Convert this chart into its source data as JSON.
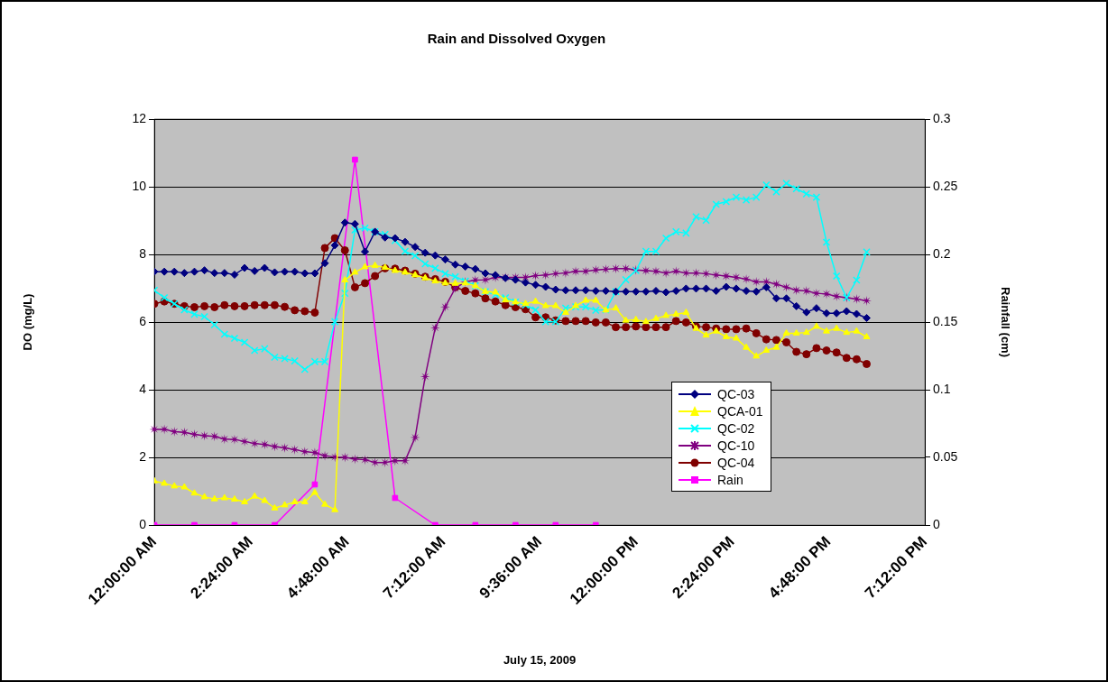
{
  "chart_data": {
    "type": "line",
    "title": "Rain and Dissolved Oxygen",
    "xlabel": "July 15, 2009",
    "ylabel": "DO (mg/L)",
    "y2label": "Rainfall (cm)",
    "x": [
      0,
      0.25,
      0.5,
      0.75,
      1,
      1.25,
      1.5,
      1.75,
      2,
      2.25,
      2.5,
      2.75,
      3,
      3.25,
      3.5,
      3.75,
      4,
      4.25,
      4.5,
      4.75,
      5,
      5.25,
      5.5,
      5.75,
      6,
      6.25,
      6.5,
      6.75,
      7,
      7.25,
      7.5,
      7.75,
      8,
      8.25,
      8.5,
      8.75,
      9,
      9.25,
      9.5,
      9.75,
      10,
      10.25,
      10.5,
      10.75,
      11,
      11.25,
      11.5,
      11.75,
      12,
      12.25,
      12.5,
      12.75,
      13,
      13.25,
      13.5,
      13.75,
      14,
      14.25,
      14.5,
      14.75,
      15,
      15.25,
      15.5,
      15.75,
      16,
      16.25,
      16.5,
      16.75,
      17,
      17.25,
      17.5,
      17.75
    ],
    "series": [
      {
        "name": "QC-03",
        "color": "#000080",
        "marker": "diamond",
        "values": [
          7.49,
          7.49,
          7.49,
          7.45,
          7.49,
          7.53,
          7.45,
          7.45,
          7.4,
          7.6,
          7.51,
          7.6,
          7.47,
          7.49,
          7.49,
          7.44,
          7.44,
          7.74,
          8.27,
          8.94,
          8.9,
          8.08,
          8.67,
          8.5,
          8.48,
          8.37,
          8.22,
          8.05,
          7.97,
          7.85,
          7.7,
          7.64,
          7.57,
          7.44,
          7.39,
          7.3,
          7.25,
          7.17,
          7.1,
          7.04,
          6.96,
          6.94,
          6.94,
          6.94,
          6.92,
          6.92,
          6.9,
          6.9,
          6.9,
          6.9,
          6.92,
          6.88,
          6.92,
          6.99,
          6.99,
          6.99,
          6.92,
          7.04,
          6.99,
          6.92,
          6.9,
          7.03,
          6.7,
          6.7,
          6.47,
          6.29,
          6.41,
          6.26,
          6.26,
          6.32,
          6.24,
          6.12
        ]
      },
      {
        "name": "QCA-01",
        "color": "#ffff00",
        "marker": "triangle",
        "values": [
          1.3,
          1.23,
          1.15,
          1.12,
          0.94,
          0.83,
          0.77,
          0.8,
          0.76,
          0.68,
          0.85,
          0.72,
          0.5,
          0.59,
          0.68,
          0.68,
          0.96,
          0.61,
          0.45,
          7.24,
          7.47,
          7.63,
          7.67,
          7.61,
          7.52,
          7.47,
          7.39,
          7.3,
          7.21,
          7.15,
          7.14,
          7.15,
          7.07,
          6.9,
          6.88,
          6.65,
          6.59,
          6.54,
          6.61,
          6.48,
          6.48,
          6.28,
          6.48,
          6.64,
          6.64,
          6.35,
          6.41,
          6.05,
          6.07,
          6.01,
          6.1,
          6.19,
          6.23,
          6.28,
          5.81,
          5.61,
          5.73,
          5.56,
          5.52,
          5.25,
          4.99,
          5.16,
          5.25,
          5.67,
          5.67,
          5.69,
          5.87,
          5.73,
          5.81,
          5.69,
          5.73,
          5.56
        ]
      },
      {
        "name": "QC-02",
        "color": "#00ffff",
        "marker": "cross",
        "values": [
          6.94,
          6.72,
          6.54,
          6.36,
          6.23,
          6.16,
          5.92,
          5.64,
          5.52,
          5.4,
          5.16,
          5.21,
          4.96,
          4.92,
          4.85,
          4.6,
          4.83,
          4.83,
          6.01,
          6.85,
          8.72,
          8.78,
          8.67,
          8.59,
          8.41,
          8.09,
          7.96,
          7.72,
          7.59,
          7.43,
          7.34,
          7.21,
          7.07,
          6.9,
          6.81,
          6.72,
          6.59,
          6.5,
          6.36,
          6.01,
          6.01,
          6.41,
          6.45,
          6.45,
          6.35,
          6.36,
          6.9,
          7.25,
          7.52,
          8.09,
          8.09,
          8.48,
          8.67,
          8.63,
          9.11,
          9.01,
          9.48,
          9.56,
          9.69,
          9.61,
          9.69,
          10.05,
          9.85,
          10.1,
          9.94,
          9.79,
          9.69,
          8.36,
          7.36,
          6.72,
          7.24,
          8.07
        ]
      },
      {
        "name": "QC-10",
        "color": "#800080",
        "marker": "star",
        "values": [
          2.83,
          2.83,
          2.76,
          2.74,
          2.68,
          2.64,
          2.62,
          2.54,
          2.53,
          2.47,
          2.41,
          2.38,
          2.32,
          2.28,
          2.23,
          2.17,
          2.14,
          2.05,
          2.01,
          2.0,
          1.95,
          1.93,
          1.85,
          1.85,
          1.9,
          1.9,
          2.59,
          4.39,
          5.83,
          6.45,
          7.0,
          7.19,
          7.24,
          7.25,
          7.32,
          7.32,
          7.32,
          7.32,
          7.37,
          7.39,
          7.43,
          7.45,
          7.5,
          7.5,
          7.54,
          7.56,
          7.58,
          7.58,
          7.54,
          7.52,
          7.5,
          7.45,
          7.5,
          7.45,
          7.45,
          7.43,
          7.39,
          7.36,
          7.32,
          7.27,
          7.19,
          7.19,
          7.12,
          7.03,
          6.94,
          6.92,
          6.85,
          6.83,
          6.76,
          6.72,
          6.68,
          6.63
        ]
      },
      {
        "name": "QC-04",
        "color": "#800000",
        "marker": "circle",
        "values": [
          6.54,
          6.61,
          6.54,
          6.47,
          6.44,
          6.47,
          6.44,
          6.5,
          6.47,
          6.47,
          6.5,
          6.5,
          6.5,
          6.45,
          6.35,
          6.32,
          6.28,
          8.19,
          8.48,
          8.12,
          7.03,
          7.15,
          7.36,
          7.59,
          7.58,
          7.52,
          7.43,
          7.34,
          7.27,
          7.19,
          7.03,
          6.92,
          6.85,
          6.7,
          6.61,
          6.5,
          6.44,
          6.38,
          6.14,
          6.14,
          6.05,
          6.03,
          6.03,
          6.03,
          5.99,
          5.99,
          5.85,
          5.85,
          5.87,
          5.85,
          5.85,
          5.85,
          6.03,
          5.99,
          5.87,
          5.85,
          5.81,
          5.79,
          5.79,
          5.81,
          5.67,
          5.49,
          5.47,
          5.4,
          5.12,
          5.05,
          5.23,
          5.16,
          5.1,
          4.94,
          4.9,
          4.76
        ]
      },
      {
        "name": "Rain",
        "color": "#ff00ff",
        "marker": "square",
        "axis": "y2",
        "x": [
          0,
          1,
          2,
          3,
          4,
          5,
          6,
          7,
          8,
          9,
          10,
          11
        ],
        "values": [
          0,
          0,
          0,
          0,
          0.03,
          0.27,
          0.02,
          0,
          0,
          0,
          0,
          0
        ]
      }
    ],
    "xlim": [
      0,
      19.2
    ],
    "xticks": [
      {
        "value": 0,
        "label": "12:00:00 AM"
      },
      {
        "value": 2.4,
        "label": "2:24:00 AM"
      },
      {
        "value": 4.8,
        "label": "4:48:00 AM"
      },
      {
        "value": 7.2,
        "label": "7:12:00 AM"
      },
      {
        "value": 9.6,
        "label": "9:36:00 AM"
      },
      {
        "value": 12,
        "label": "12:00:00 PM"
      },
      {
        "value": 14.4,
        "label": "2:24:00 PM"
      },
      {
        "value": 16.8,
        "label": "4:48:00 PM"
      },
      {
        "value": 19.2,
        "label": "7:12:00 PM"
      }
    ],
    "ylim": [
      0,
      12
    ],
    "yticks": [
      0,
      2,
      4,
      6,
      8,
      10,
      12
    ],
    "y2lim": [
      0,
      0.3
    ],
    "y2ticks": [
      0,
      0.05,
      0.1,
      0.15,
      0.2,
      0.25,
      0.3
    ],
    "grid": "y",
    "legend": "bottom right",
    "line_style": "solid"
  }
}
